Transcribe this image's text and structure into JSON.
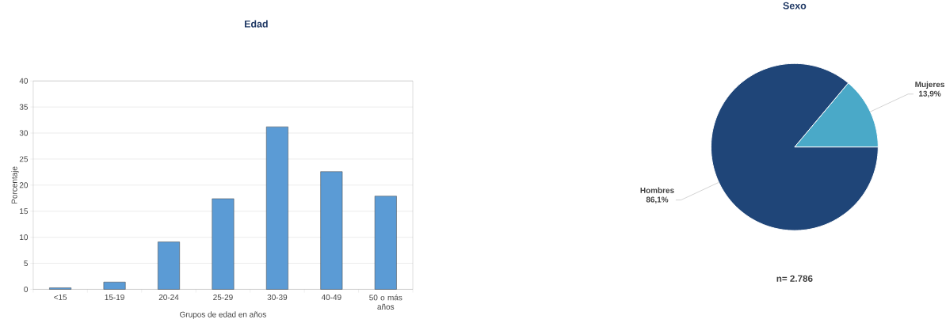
{
  "chart_data": [
    {
      "type": "bar",
      "title": "Edad",
      "xlabel": "Grupos de edad en años",
      "ylabel": "Porcentaje",
      "categories": [
        "<15",
        "15-19",
        "20-24",
        "25-29",
        "30-39",
        "40-49",
        "50 o más años"
      ],
      "values": [
        0.3,
        1.4,
        9.1,
        17.4,
        31.2,
        22.6,
        17.9
      ],
      "color": "#5b9bd5",
      "ylim": [
        0,
        40
      ],
      "yticks": [
        0,
        5,
        10,
        15,
        20,
        25,
        30,
        35,
        40
      ],
      "grid": "y"
    },
    {
      "type": "pie",
      "title": "Sexo",
      "categories": [
        "Mujeres",
        "Hombres"
      ],
      "values": [
        13.9,
        86.1
      ],
      "colors": [
        "#4aa9c8",
        "#1f4578"
      ],
      "value_labels": [
        "13,9%",
        "86,1%"
      ],
      "annotations": [
        "n= 2.786"
      ]
    }
  ]
}
